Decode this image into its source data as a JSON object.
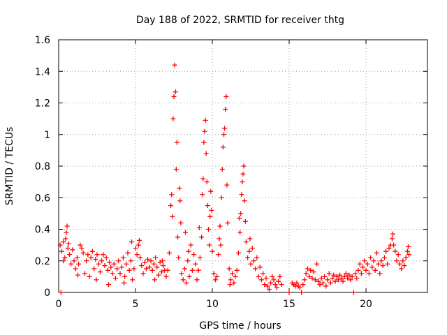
{
  "chart_data": {
    "type": "scatter",
    "title": "Day 188 of 2022, SRMTID for receiver thtg",
    "xlabel": "GPS time / hours",
    "ylabel": "SRMTID / TECUs",
    "xlim": [
      0,
      24
    ],
    "ylim": [
      0,
      1.6
    ],
    "xticks": [
      0,
      5,
      10,
      15,
      20
    ],
    "xtick_labels": [
      "0",
      "5",
      "10",
      "15",
      "20"
    ],
    "yticks": [
      0,
      0.2,
      0.4,
      0.6,
      0.8,
      1,
      1.2,
      1.4,
      1.6
    ],
    "ytick_labels": [
      "0",
      "0.2",
      "0.4",
      "0.6",
      "0.8",
      "1",
      "1.2",
      "1.4",
      "1.6"
    ],
    "grid": true,
    "marker": "plus",
    "color": "#ff0000",
    "series": [
      {
        "name": "SRMTID",
        "points": [
          [
            0.1,
            0.3
          ],
          [
            0.2,
            0.26
          ],
          [
            0.3,
            0.32
          ],
          [
            0.4,
            0.22
          ],
          [
            0.5,
            0.38
          ],
          [
            0.55,
            0.42
          ],
          [
            0.6,
            0.28
          ],
          [
            0.7,
            0.24
          ],
          [
            0.8,
            0.18
          ],
          [
            0.9,
            0.27
          ],
          [
            1.0,
            0.2
          ],
          [
            1.1,
            0.15
          ],
          [
            1.2,
            0.22
          ],
          [
            1.3,
            0.18
          ],
          [
            1.4,
            0.3
          ],
          [
            1.5,
            0.28
          ],
          [
            1.6,
            0.25
          ],
          [
            1.7,
            0.12
          ],
          [
            1.8,
            0.2
          ],
          [
            1.9,
            0.24
          ],
          [
            2.0,
            0.1
          ],
          [
            2.1,
            0.22
          ],
          [
            2.2,
            0.26
          ],
          [
            2.3,
            0.15
          ],
          [
            2.4,
            0.21
          ],
          [
            2.5,
            0.24
          ],
          [
            2.6,
            0.18
          ],
          [
            2.7,
            0.13
          ],
          [
            2.8,
            0.2
          ],
          [
            2.9,
            0.24
          ],
          [
            3.0,
            0.17
          ],
          [
            3.1,
            0.22
          ],
          [
            3.2,
            0.14
          ],
          [
            3.3,
            0.19
          ],
          [
            3.4,
            0.16
          ],
          [
            3.5,
            0.12
          ],
          [
            3.6,
            0.18
          ],
          [
            3.7,
            0.09
          ],
          [
            3.8,
            0.15
          ],
          [
            3.9,
            0.2
          ],
          [
            4.0,
            0.12
          ],
          [
            4.1,
            0.16
          ],
          [
            4.2,
            0.22
          ],
          [
            4.3,
            0.1
          ],
          [
            4.4,
            0.18
          ],
          [
            4.5,
            0.25
          ],
          [
            4.6,
            0.14
          ],
          [
            4.7,
            0.2
          ],
          [
            4.8,
            0.08
          ],
          [
            4.9,
            0.15
          ],
          [
            5.0,
            0.28
          ],
          [
            5.1,
            0.24
          ],
          [
            5.2,
            0.3
          ],
          [
            5.3,
            0.22
          ],
          [
            5.4,
            0.17
          ],
          [
            5.5,
            0.12
          ],
          [
            5.6,
            0.19
          ],
          [
            5.7,
            0.15
          ],
          [
            5.8,
            0.21
          ],
          [
            5.9,
            0.16
          ],
          [
            6.0,
            0.2
          ],
          [
            6.1,
            0.14
          ],
          [
            6.2,
            0.18
          ],
          [
            6.3,
            0.22
          ],
          [
            6.4,
            0.16
          ],
          [
            6.5,
            0.11
          ],
          [
            6.6,
            0.19
          ],
          [
            6.7,
            0.13
          ],
          [
            6.8,
            0.17
          ],
          [
            6.9,
            0.14
          ],
          [
            7.0,
            0.1
          ],
          [
            7.1,
            0.14
          ],
          [
            7.2,
            0.25
          ],
          [
            7.3,
            0.55
          ],
          [
            7.35,
            0.62
          ],
          [
            7.4,
            0.48
          ],
          [
            7.45,
            1.1
          ],
          [
            7.5,
            1.24
          ],
          [
            7.55,
            1.44
          ],
          [
            7.6,
            1.27
          ],
          [
            7.65,
            0.78
          ],
          [
            7.7,
            0.95
          ],
          [
            7.75,
            0.35
          ],
          [
            7.8,
            0.22
          ],
          [
            7.85,
            0.66
          ],
          [
            7.9,
            0.58
          ],
          [
            8.0,
            0.12
          ],
          [
            8.1,
            0.08
          ],
          [
            8.2,
            0.15
          ],
          [
            8.3,
            0.06
          ],
          [
            8.4,
            0.2
          ],
          [
            8.5,
            0.1
          ],
          [
            8.6,
            0.3
          ],
          [
            8.7,
            0.14
          ],
          [
            8.8,
            0.24
          ],
          [
            8.9,
            0.18
          ],
          [
            9.0,
            0.08
          ],
          [
            9.1,
            0.14
          ],
          [
            9.2,
            0.22
          ],
          [
            9.3,
            0.35
          ],
          [
            9.35,
            0.62
          ],
          [
            9.4,
            0.72
          ],
          [
            9.45,
            0.95
          ],
          [
            9.5,
            1.02
          ],
          [
            9.55,
            1.09
          ],
          [
            9.6,
            0.88
          ],
          [
            9.65,
            0.7
          ],
          [
            9.7,
            0.55
          ],
          [
            9.75,
            0.4
          ],
          [
            9.8,
            0.3
          ],
          [
            9.85,
            0.48
          ],
          [
            9.9,
            0.64
          ],
          [
            9.95,
            0.52
          ],
          [
            10.0,
            0.26
          ],
          [
            10.1,
            0.12
          ],
          [
            10.2,
            0.08
          ],
          [
            10.3,
            0.1
          ],
          [
            10.4,
            0.24
          ],
          [
            10.5,
            0.42
          ],
          [
            10.55,
            0.3
          ],
          [
            10.6,
            0.6
          ],
          [
            10.65,
            0.78
          ],
          [
            10.7,
            0.92
          ],
          [
            10.75,
            1.0
          ],
          [
            10.8,
            1.04
          ],
          [
            10.85,
            1.16
          ],
          [
            10.9,
            1.24
          ],
          [
            10.95,
            0.68
          ],
          [
            11.0,
            0.44
          ],
          [
            11.1,
            0.15
          ],
          [
            11.2,
            0.08
          ],
          [
            11.3,
            0.12
          ],
          [
            11.4,
            0.06
          ],
          [
            11.5,
            0.1
          ],
          [
            11.6,
            0.14
          ],
          [
            11.7,
            0.25
          ],
          [
            11.8,
            0.38
          ],
          [
            11.85,
            0.5
          ],
          [
            11.9,
            0.62
          ],
          [
            11.95,
            0.7
          ],
          [
            12.0,
            0.75
          ],
          [
            12.05,
            0.8
          ],
          [
            12.1,
            0.58
          ],
          [
            12.15,
            0.45
          ],
          [
            12.2,
            0.32
          ],
          [
            12.3,
            0.22
          ],
          [
            12.4,
            0.26
          ],
          [
            12.5,
            0.18
          ],
          [
            12.6,
            0.28
          ],
          [
            12.7,
            0.2
          ],
          [
            12.8,
            0.15
          ],
          [
            12.9,
            0.22
          ],
          [
            13.0,
            0.1
          ],
          [
            13.1,
            0.16
          ],
          [
            13.2,
            0.08
          ],
          [
            13.3,
            0.12
          ],
          [
            13.4,
            0.05
          ],
          [
            13.5,
            0.09
          ],
          [
            13.6,
            0.04
          ],
          [
            13.7,
            0.02
          ],
          [
            13.8,
            0.06
          ],
          [
            13.9,
            0.1
          ],
          [
            14.0,
            0.08
          ],
          [
            14.1,
            0.05
          ],
          [
            14.2,
            0.03
          ],
          [
            14.3,
            0.07
          ],
          [
            14.4,
            0.1
          ],
          [
            14.5,
            0.05
          ],
          [
            15.0,
            0.0
          ],
          [
            15.2,
            0.06
          ],
          [
            15.3,
            0.05
          ],
          [
            15.4,
            0.04
          ],
          [
            15.5,
            0.06
          ],
          [
            15.6,
            0.04
          ],
          [
            15.7,
            0.03
          ],
          [
            15.8,
            0.0
          ],
          [
            15.9,
            0.05
          ],
          [
            16.0,
            0.08
          ],
          [
            16.1,
            0.12
          ],
          [
            16.2,
            0.15
          ],
          [
            16.3,
            0.1
          ],
          [
            16.4,
            0.14
          ],
          [
            16.5,
            0.09
          ],
          [
            16.6,
            0.13
          ],
          [
            16.7,
            0.08
          ],
          [
            16.8,
            0.18
          ],
          [
            16.9,
            0.07
          ],
          [
            17.0,
            0.05
          ],
          [
            17.1,
            0.09
          ],
          [
            17.2,
            0.06
          ],
          [
            17.3,
            0.1
          ],
          [
            17.4,
            0.04
          ],
          [
            17.5,
            0.08
          ],
          [
            17.6,
            0.12
          ],
          [
            17.7,
            0.06
          ],
          [
            17.8,
            0.09
          ],
          [
            17.9,
            0.11
          ],
          [
            18.0,
            0.07
          ],
          [
            18.1,
            0.1
          ],
          [
            18.2,
            0.08
          ],
          [
            18.3,
            0.11
          ],
          [
            18.4,
            0.09
          ],
          [
            18.5,
            0.07
          ],
          [
            18.6,
            0.1
          ],
          [
            18.7,
            0.12
          ],
          [
            18.8,
            0.09
          ],
          [
            18.9,
            0.11
          ],
          [
            19.0,
            0.08
          ],
          [
            19.1,
            0.1
          ],
          [
            19.2,
            0.0
          ],
          [
            19.3,
            0.12
          ],
          [
            19.4,
            0.09
          ],
          [
            19.5,
            0.14
          ],
          [
            19.6,
            0.18
          ],
          [
            19.7,
            0.12
          ],
          [
            19.8,
            0.16
          ],
          [
            19.9,
            0.2
          ],
          [
            20.0,
            0.14
          ],
          [
            20.1,
            0.18
          ],
          [
            20.2,
            0.12
          ],
          [
            20.3,
            0.22
          ],
          [
            20.4,
            0.16
          ],
          [
            20.5,
            0.2
          ],
          [
            20.6,
            0.14
          ],
          [
            20.7,
            0.25
          ],
          [
            20.8,
            0.18
          ],
          [
            20.9,
            0.12
          ],
          [
            21.0,
            0.2
          ],
          [
            21.1,
            0.17
          ],
          [
            21.2,
            0.22
          ],
          [
            21.3,
            0.26
          ],
          [
            21.4,
            0.18
          ],
          [
            21.5,
            0.28
          ],
          [
            21.6,
            0.3
          ],
          [
            21.7,
            0.34
          ],
          [
            21.75,
            0.37
          ],
          [
            21.8,
            0.3
          ],
          [
            21.9,
            0.26
          ],
          [
            22.0,
            0.2
          ],
          [
            22.1,
            0.24
          ],
          [
            22.2,
            0.18
          ],
          [
            22.3,
            0.15
          ],
          [
            22.4,
            0.2
          ],
          [
            22.5,
            0.17
          ],
          [
            22.6,
            0.22
          ],
          [
            22.7,
            0.26
          ],
          [
            22.75,
            0.29
          ],
          [
            22.8,
            0.24
          ],
          [
            0.15,
            0.0
          ],
          [
            0.3,
            0.2
          ],
          [
            0.45,
            0.34
          ],
          [
            0.65,
            0.31
          ],
          [
            1.25,
            0.11
          ],
          [
            2.45,
            0.08
          ],
          [
            3.25,
            0.05
          ],
          [
            4.25,
            0.06
          ],
          [
            4.75,
            0.32
          ],
          [
            5.25,
            0.33
          ],
          [
            6.25,
            0.08
          ],
          [
            6.75,
            0.2
          ],
          [
            7.95,
            0.44
          ],
          [
            8.25,
            0.38
          ],
          [
            8.45,
            0.26
          ],
          [
            9.15,
            0.41
          ],
          [
            10.45,
            0.34
          ],
          [
            11.15,
            0.05
          ],
          [
            11.75,
            0.47
          ],
          [
            12.45,
            0.34
          ]
        ]
      }
    ]
  }
}
